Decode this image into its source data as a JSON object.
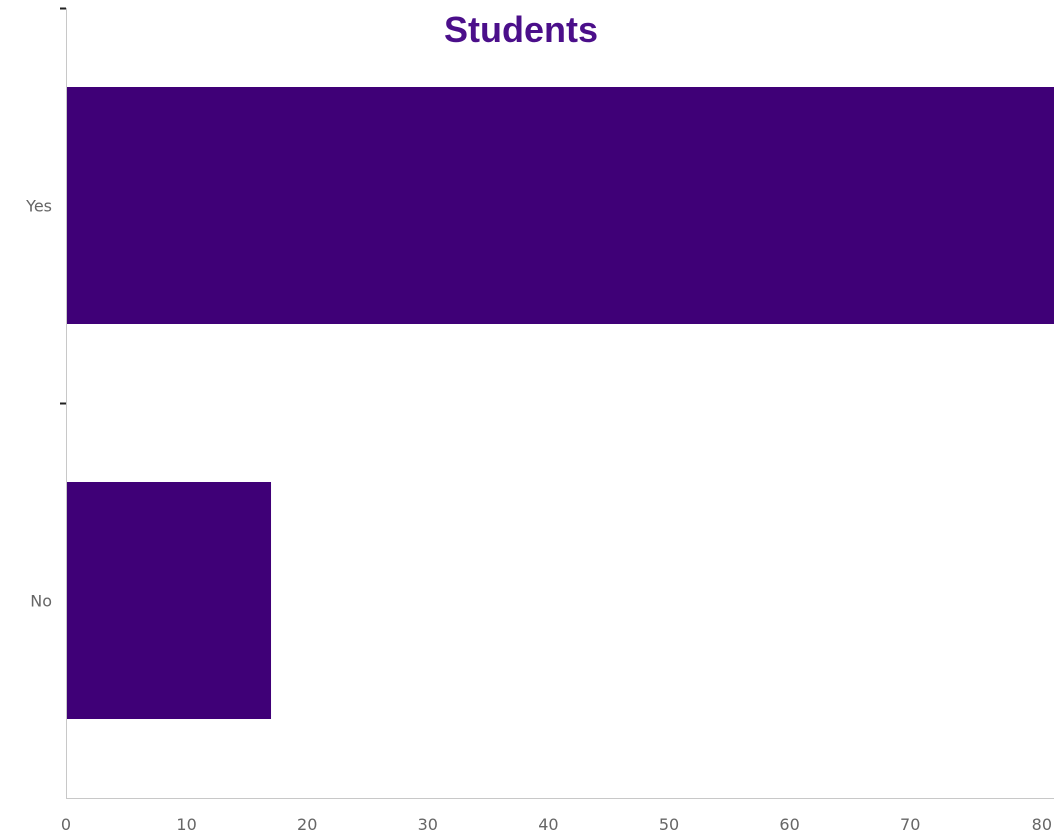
{
  "chart_data": {
    "type": "bar",
    "orientation": "horizontal",
    "title": "Students",
    "categories": [
      "Yes",
      "No"
    ],
    "values": [
      83,
      17
    ],
    "xlim": [
      0,
      82
    ],
    "xticks": [
      0,
      10,
      20,
      30,
      40,
      50,
      60,
      70,
      80
    ],
    "xlabel": "",
    "ylabel": "",
    "grid": false,
    "legend": "none"
  },
  "colors": {
    "bar": "#3f0077",
    "title": "#4b0f8a",
    "axis": "#c8c8c8",
    "tick_text": "#666666",
    "tick_mark": "#222222"
  }
}
